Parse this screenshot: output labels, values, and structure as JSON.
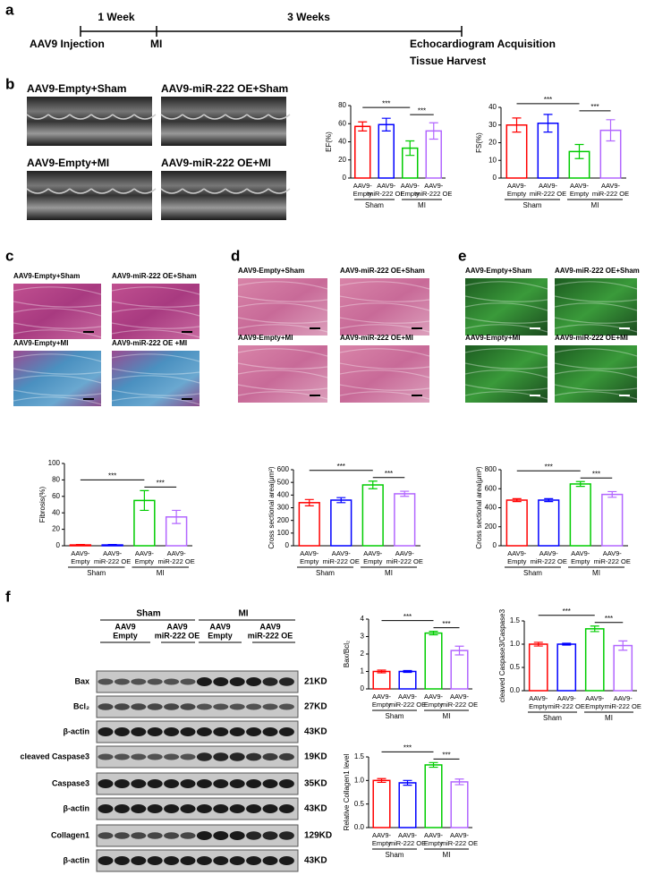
{
  "panel_letters": [
    "a",
    "b",
    "c",
    "d",
    "e",
    "f"
  ],
  "timeline": {
    "durations": [
      "1 Week",
      "3 Weeks"
    ],
    "events": [
      "AAV9 Injection",
      "MI",
      "Echocardiogram Acquisition",
      "Tissue Harvest"
    ]
  },
  "image_panels": [
    {
      "labels": [
        "AAV9-Empty+Sham",
        "AAV9-miR-222 OE+Sham",
        "AAV9-Empty+MI",
        "AAV9-miR-222 OE+MI"
      ]
    },
    {
      "labels": [
        "AAV9-Empty+Sham",
        "AAV9-miR-222  OE+Sham",
        "AAV9-Empty+MI",
        "AAV9-miR-222  OE +MI"
      ]
    },
    {
      "labels": [
        "AAV9-Empty+Sham",
        "AAV9-miR-222  OE+Sham",
        "AAV9-Empty+MI",
        "AAV9-miR-222  OE+MI"
      ]
    },
    {
      "labels": [
        "AAV9-Empty+Sham",
        "AAV9-miR-222  OE+Sham",
        "AAV9-Empty+MI",
        "AAV9-miR-222  OE+MI"
      ]
    }
  ],
  "blot": {
    "groups": [
      "Sham",
      "MI"
    ],
    "lanes": [
      [
        "AAV9",
        "Empty"
      ],
      [
        "AAV9",
        "miR-222 OE"
      ],
      [
        "AAV9",
        "Empty"
      ],
      [
        "AAV9",
        "miR-222 OE"
      ]
    ],
    "rows": [
      {
        "name": "Bax",
        "size": "21KD"
      },
      {
        "name": "Bcl₂",
        "size": "27KD"
      },
      {
        "name": "β-actin",
        "size": "43KD"
      },
      {
        "name": "cleaved Caspase3",
        "size": "19KD"
      },
      {
        "name": "Caspase3",
        "size": "35KD"
      },
      {
        "name": "β-actin",
        "size": "43KD"
      },
      {
        "name": "Collagen1",
        "size": "129KD"
      },
      {
        "name": "β-actin",
        "size": "43KD"
      }
    ]
  },
  "chart_data": [
    {
      "type": "bar",
      "y_label": "EF(%)",
      "categories": [
        [
          "AAV9-",
          "Empty"
        ],
        [
          "AAV9-",
          "miR-222 OE"
        ],
        [
          "AAV9-",
          "Empty"
        ],
        [
          "AAV9-",
          "miR-222 OE"
        ]
      ],
      "groups": [
        "Sham",
        "MI"
      ],
      "values": [
        57,
        59,
        33,
        52
      ],
      "errors": [
        5,
        7,
        8,
        9
      ],
      "colors": [
        "#ff0000",
        "#0000ff",
        "#00cc00",
        "#b266ff"
      ],
      "ylim": [
        0,
        80
      ],
      "yticks": [
        0,
        20,
        40,
        60,
        80
      ],
      "annotations": [
        "***",
        "***"
      ]
    },
    {
      "type": "bar",
      "y_label": "FS(%)",
      "categories": [
        [
          "AAV9-",
          "Empty"
        ],
        [
          "AAV9-",
          "miR-222 OE"
        ],
        [
          "AAV9-",
          "Empty"
        ],
        [
          "AAV9-",
          "miR-222 OE"
        ]
      ],
      "groups": [
        "Sham",
        "MI"
      ],
      "values": [
        30,
        31,
        15,
        27
      ],
      "errors": [
        4,
        5,
        4,
        6
      ],
      "colors": [
        "#ff0000",
        "#0000ff",
        "#00cc00",
        "#b266ff"
      ],
      "ylim": [
        0,
        40
      ],
      "yticks": [
        0,
        10,
        20,
        30,
        40
      ],
      "annotations": [
        "***",
        "***"
      ]
    },
    {
      "type": "bar",
      "y_label": "Fibrosis(%)",
      "categories": [
        [
          "AAV9-",
          "Empty"
        ],
        [
          "AAV9-",
          "miR-222 OE"
        ],
        [
          "AAV9-",
          "Empty"
        ],
        [
          "AAV9-",
          "miR-222 OE"
        ]
      ],
      "groups": [
        "Sham",
        "MI"
      ],
      "values": [
        1,
        1,
        55,
        35
      ],
      "errors": [
        0.5,
        0.5,
        12,
        8
      ],
      "colors": [
        "#ff0000",
        "#0000ff",
        "#00cc00",
        "#b266ff"
      ],
      "ylim": [
        0,
        100
      ],
      "yticks": [
        0,
        20,
        40,
        60,
        80,
        100
      ],
      "annotations": [
        "***",
        "***"
      ]
    },
    {
      "type": "bar",
      "y_label": "Cross sectional area(μm²)",
      "categories": [
        [
          "AAV9-",
          "Empty"
        ],
        [
          "AAV9-",
          "miR-222 OE"
        ],
        [
          "AAV9-",
          "Empty"
        ],
        [
          "AAV9-",
          "miR-222 OE"
        ]
      ],
      "groups": [
        "Sham",
        "MI"
      ],
      "values": [
        340,
        360,
        480,
        410
      ],
      "errors": [
        25,
        20,
        30,
        20
      ],
      "colors": [
        "#ff0000",
        "#0000ff",
        "#00cc00",
        "#b266ff"
      ],
      "ylim": [
        0,
        600
      ],
      "yticks": [
        0,
        100,
        200,
        300,
        400,
        500,
        600
      ],
      "annotations": [
        "***",
        "***"
      ]
    },
    {
      "type": "bar",
      "y_label": "Cross sectional area(μm²)",
      "categories": [
        [
          "AAV9-",
          "Empty"
        ],
        [
          "AAV9-",
          "miR-222 OE"
        ],
        [
          "AAV9-",
          "Empty"
        ],
        [
          "AAV9-",
          "miR-222 OE"
        ]
      ],
      "groups": [
        "Sham",
        "MI"
      ],
      "values": [
        480,
        480,
        650,
        540
      ],
      "errors": [
        15,
        15,
        25,
        30
      ],
      "colors": [
        "#ff0000",
        "#0000ff",
        "#00cc00",
        "#b266ff"
      ],
      "ylim": [
        0,
        800
      ],
      "yticks": [
        0,
        200,
        400,
        600,
        800
      ],
      "annotations": [
        "***",
        "***"
      ]
    },
    {
      "type": "bar",
      "y_label": "Bax/Bcl₂",
      "categories": [
        [
          "AAV9-",
          "Empty"
        ],
        [
          "AAV9-",
          "miR-222 OE"
        ],
        [
          "AAV9-",
          "Empty"
        ],
        [
          "AAV9-",
          "miR-222 OE"
        ]
      ],
      "groups": [
        "Sham",
        "MI"
      ],
      "values": [
        1.0,
        1.0,
        3.2,
        2.2
      ],
      "errors": [
        0.08,
        0.05,
        0.1,
        0.25
      ],
      "colors": [
        "#ff0000",
        "#0000ff",
        "#00cc00",
        "#b266ff"
      ],
      "ylim": [
        0,
        4
      ],
      "yticks": [
        0,
        1,
        2,
        3,
        4
      ],
      "annotations": [
        "***",
        "***"
      ]
    },
    {
      "type": "bar",
      "y_label": "cleaved Caspase3/Caspase3",
      "categories": [
        [
          "AAV9-",
          "Empty"
        ],
        [
          "AAV9-",
          "miR-222 OE"
        ],
        [
          "AAV9-",
          "Empty"
        ],
        [
          "AAV9-",
          "miR-222 OE"
        ]
      ],
      "groups": [
        "Sham",
        "MI"
      ],
      "values": [
        1.0,
        1.0,
        1.33,
        0.97
      ],
      "errors": [
        0.04,
        0.02,
        0.06,
        0.1
      ],
      "colors": [
        "#ff0000",
        "#0000ff",
        "#00cc00",
        "#b266ff"
      ],
      "ylim": [
        0,
        1.5
      ],
      "yticks": [
        {
          "value": 0,
          "label": "0.0"
        },
        0.5,
        {
          "value": 1,
          "label": "1.0"
        },
        1.5
      ],
      "annotations": [
        "***",
        "***"
      ]
    },
    {
      "type": "bar",
      "y_label": "Relative Collagen1 level",
      "categories": [
        [
          "AAV9-",
          "Empty"
        ],
        [
          "AAV9-",
          "miR-222 OE"
        ],
        [
          "AAV9-",
          "Empty"
        ],
        [
          "AAV9-",
          "miR-222 OE"
        ]
      ],
      "groups": [
        "Sham",
        "MI"
      ],
      "values": [
        1.0,
        0.95,
        1.33,
        0.97
      ],
      "errors": [
        0.04,
        0.05,
        0.05,
        0.06
      ],
      "colors": [
        "#ff0000",
        "#0000ff",
        "#00cc00",
        "#b266ff"
      ],
      "ylim": [
        0,
        1.5
      ],
      "yticks": [
        {
          "value": 0,
          "label": "0.0"
        },
        0.5,
        {
          "value": 1,
          "label": "1.0"
        },
        1.5
      ],
      "annotations": [
        "***",
        "***"
      ]
    }
  ]
}
